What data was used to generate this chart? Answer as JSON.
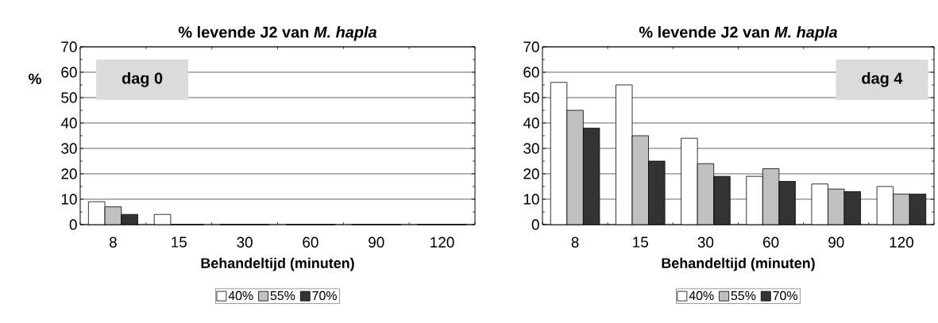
{
  "chart_data": [
    {
      "type": "bar",
      "title": "% levende J2 van *M. hapla*",
      "xlabel": "Behandeltijd (minuten)",
      "ylabel": "%",
      "annotations": [
        "dag 0"
      ],
      "categories": [
        "8",
        "15",
        "30",
        "60",
        "90",
        "120"
      ],
      "series": [
        {
          "name": "40%",
          "color": "#ffffff",
          "values": [
            9,
            4,
            0,
            0,
            0,
            0
          ]
        },
        {
          "name": "55%",
          "color": "#c0c0c0",
          "values": [
            7,
            0,
            0,
            0,
            0,
            0
          ]
        },
        {
          "name": "70%",
          "color": "#333333",
          "values": [
            4,
            0,
            0,
            0,
            0,
            0
          ]
        }
      ],
      "ylim": [
        0,
        70
      ],
      "yticks": [
        0,
        10,
        20,
        30,
        40,
        50,
        60,
        70
      ],
      "grid": "y",
      "legend": "bottom"
    },
    {
      "type": "bar",
      "title": "% levende J2 van *M. hapla*",
      "xlabel": "Behandeltijd (minuten)",
      "annotations": [
        "dag 4"
      ],
      "categories": [
        "8",
        "15",
        "30",
        "60",
        "90",
        "120"
      ],
      "series": [
        {
          "name": "40%",
          "color": "#ffffff",
          "values": [
            56,
            55,
            34,
            19,
            16,
            15
          ]
        },
        {
          "name": "55%",
          "color": "#c0c0c0",
          "values": [
            45,
            35,
            24,
            22,
            14,
            12
          ]
        },
        {
          "name": "70%",
          "color": "#333333",
          "values": [
            38,
            25,
            19,
            17,
            13,
            12
          ]
        }
      ],
      "ylim": [
        0,
        70
      ],
      "yticks": [
        0,
        10,
        20,
        30,
        40,
        50,
        60,
        70
      ],
      "grid": "y",
      "legend": "bottom"
    }
  ]
}
